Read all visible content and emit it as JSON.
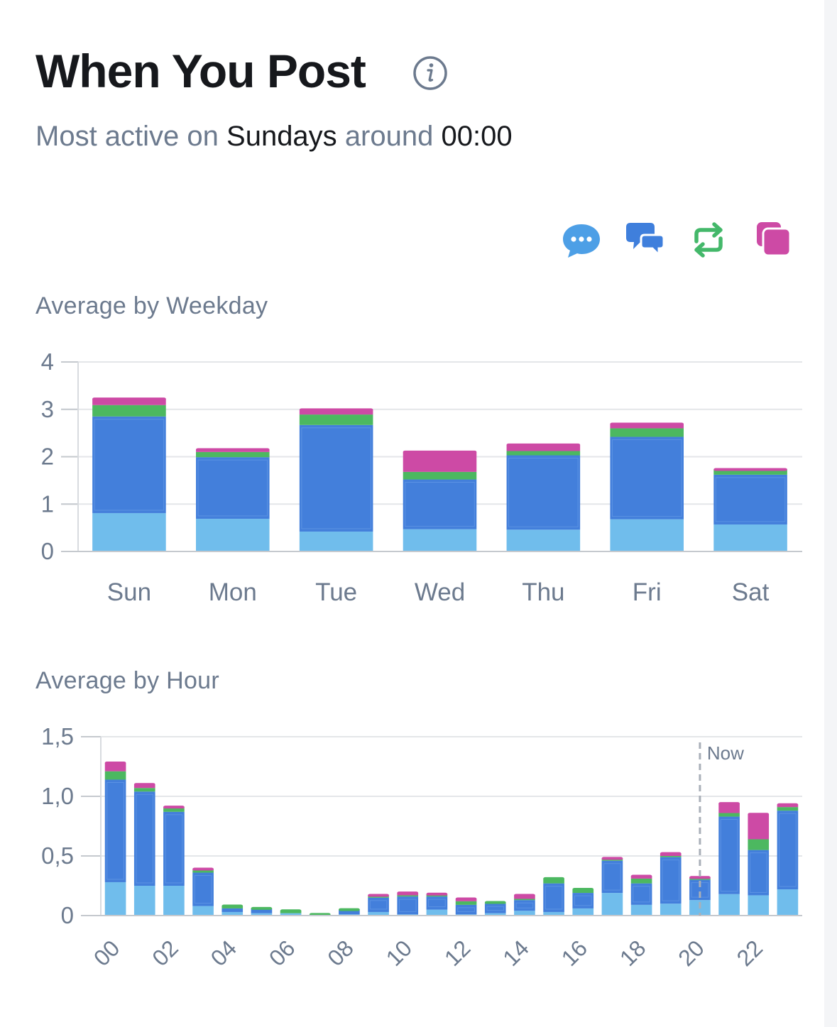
{
  "header": {
    "title": "When You Post",
    "summary_prefix": "Most active on",
    "summary_day": "Sundays",
    "summary_mid": "around",
    "summary_time": "00:00"
  },
  "legend": [
    {
      "name": "tweet-icon",
      "color": "#4d9fe6"
    },
    {
      "name": "reply-icon",
      "color": "#3f7fdc"
    },
    {
      "name": "retweet-icon",
      "color": "#44b86a"
    },
    {
      "name": "quote-icon",
      "color": "#cd4aa5"
    }
  ],
  "chart_data": [
    {
      "type": "bar",
      "stacked": true,
      "title": "Average by Weekday",
      "categories": [
        "Sun",
        "Mon",
        "Tue",
        "Wed",
        "Thu",
        "Fri",
        "Sat"
      ],
      "yticks": [
        "0",
        "1",
        "2",
        "3",
        "4"
      ],
      "ylim": [
        0,
        4
      ],
      "series": [
        {
          "name": "Tweets",
          "color": "#70bdec",
          "values": [
            0.81,
            0.69,
            0.42,
            0.47,
            0.46,
            0.68,
            0.57
          ]
        },
        {
          "name": "Replies",
          "color": "#437fdb",
          "values": [
            2.04,
            1.3,
            2.25,
            1.05,
            1.57,
            1.74,
            1.05
          ]
        },
        {
          "name": "Retweets",
          "color": "#4cb860",
          "values": [
            0.24,
            0.11,
            0.22,
            0.16,
            0.09,
            0.18,
            0.1
          ]
        },
        {
          "name": "Quotes",
          "color": "#cd4aa5",
          "values": [
            0.13,
            0.05,
            0.1,
            0.42,
            0.13,
            0.09,
            0.01
          ]
        }
      ]
    },
    {
      "type": "bar",
      "stacked": true,
      "title": "Average by Hour",
      "categories": [
        "00",
        "01",
        "02",
        "03",
        "04",
        "05",
        "06",
        "07",
        "08",
        "09",
        "10",
        "11",
        "12",
        "13",
        "14",
        "15",
        "16",
        "17",
        "18",
        "19",
        "20",
        "21",
        "22",
        "23"
      ],
      "tick_labels": [
        "00",
        "02",
        "04",
        "06",
        "08",
        "10",
        "12",
        "14",
        "16",
        "18",
        "20",
        "22"
      ],
      "yticks": [
        "0",
        "0,5",
        "1,0",
        "1,5"
      ],
      "ylim": [
        0,
        1.5
      ],
      "now_label": "Now",
      "now_hour": 20,
      "series": [
        {
          "name": "Tweets",
          "color": "#70bdec",
          "values": [
            0.28,
            0.25,
            0.25,
            0.08,
            0.03,
            0.02,
            0.02,
            0.01,
            0.01,
            0.03,
            0.01,
            0.05,
            0.01,
            0.02,
            0.04,
            0.03,
            0.06,
            0.19,
            0.09,
            0.1,
            0.13,
            0.18,
            0.17,
            0.22
          ]
        },
        {
          "name": "Replies",
          "color": "#437fdb",
          "values": [
            0.86,
            0.79,
            0.62,
            0.28,
            0.03,
            0.04,
            0.0,
            0.0,
            0.04,
            0.12,
            0.15,
            0.11,
            0.08,
            0.08,
            0.09,
            0.24,
            0.13,
            0.27,
            0.18,
            0.39,
            0.17,
            0.65,
            0.38,
            0.66
          ]
        },
        {
          "name": "Retweets",
          "color": "#4cb860",
          "values": [
            0.07,
            0.03,
            0.03,
            0.02,
            0.02,
            0.0,
            0.02,
            0.0,
            0.0,
            0.01,
            0.01,
            0.01,
            0.03,
            0.01,
            0.01,
            0.04,
            0.03,
            0.01,
            0.04,
            0.01,
            0.01,
            0.03,
            0.09,
            0.03
          ]
        },
        {
          "name": "Quotes",
          "color": "#cd4aa5",
          "values": [
            0.07,
            0.03,
            0.01,
            0.01,
            0.0,
            0.0,
            0.0,
            0.0,
            0.0,
            0.01,
            0.02,
            0.01,
            0.02,
            0.0,
            0.03,
            0.0,
            0.0,
            0.01,
            0.02,
            0.02,
            0.01,
            0.08,
            0.21,
            0.02
          ]
        }
      ]
    }
  ]
}
